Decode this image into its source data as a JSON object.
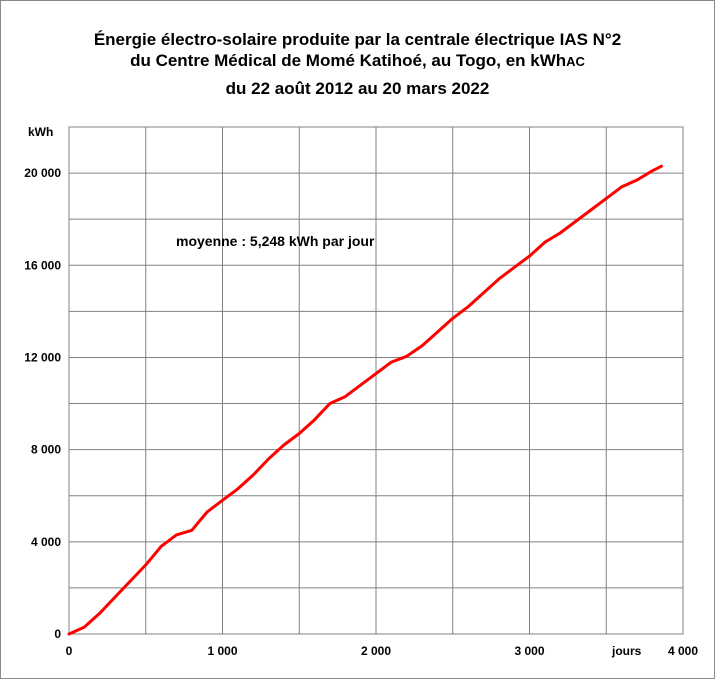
{
  "chart_data": {
    "type": "line",
    "title_line1": "Énergie électro-solaire produite par la centrale électrique IAS N°2",
    "title_line2_main": "du Centre Médical de Momé Katihoé, au Togo, en kWh",
    "title_line2_suffix": "AC",
    "title_line3": "du  22 août 2012 au 20 mars 2022",
    "ylabel": "kWh",
    "xlabel": "jours",
    "annotation": "moyenne :  5,248 kWh par jour",
    "xlim": [
      0,
      4000
    ],
    "ylim": [
      0,
      22000
    ],
    "grid": true,
    "x_ticks": [
      {
        "value": 0,
        "label": "0"
      },
      {
        "value": 1000,
        "label": "1 000"
      },
      {
        "value": 2000,
        "label": "2 000"
      },
      {
        "value": 3000,
        "label": "3 000"
      },
      {
        "value": 4000,
        "label": "4 000"
      }
    ],
    "y_ticks": [
      {
        "value": 0,
        "label": "0"
      },
      {
        "value": 4000,
        "label": "4 000"
      },
      {
        "value": 8000,
        "label": "8 000"
      },
      {
        "value": 12000,
        "label": "12 000"
      },
      {
        "value": 16000,
        "label": "16 000"
      },
      {
        "value": 20000,
        "label": "20 000"
      }
    ],
    "series": [
      {
        "color": "#ff0000",
        "x": [
          0,
          100,
          200,
          300,
          400,
          500,
          600,
          700,
          800,
          900,
          1000,
          1100,
          1200,
          1300,
          1400,
          1500,
          1600,
          1700,
          1800,
          1900,
          2000,
          2100,
          2200,
          2300,
          2400,
          2500,
          2600,
          2700,
          2800,
          2900,
          3000,
          3100,
          3200,
          3300,
          3400,
          3500,
          3600,
          3700,
          3800,
          3860
        ],
        "y": [
          0,
          300,
          900,
          1600,
          2300,
          3000,
          3800,
          4300,
          4500,
          5300,
          5800,
          6300,
          6900,
          7600,
          8200,
          8700,
          9300,
          10000,
          10300,
          10800,
          11300,
          11800,
          12050,
          12500,
          13100,
          13700,
          14200,
          14800,
          15400,
          15900,
          16400,
          17000,
          17400,
          17900,
          18400,
          18900,
          19400,
          19700,
          20100,
          20300
        ]
      }
    ]
  }
}
